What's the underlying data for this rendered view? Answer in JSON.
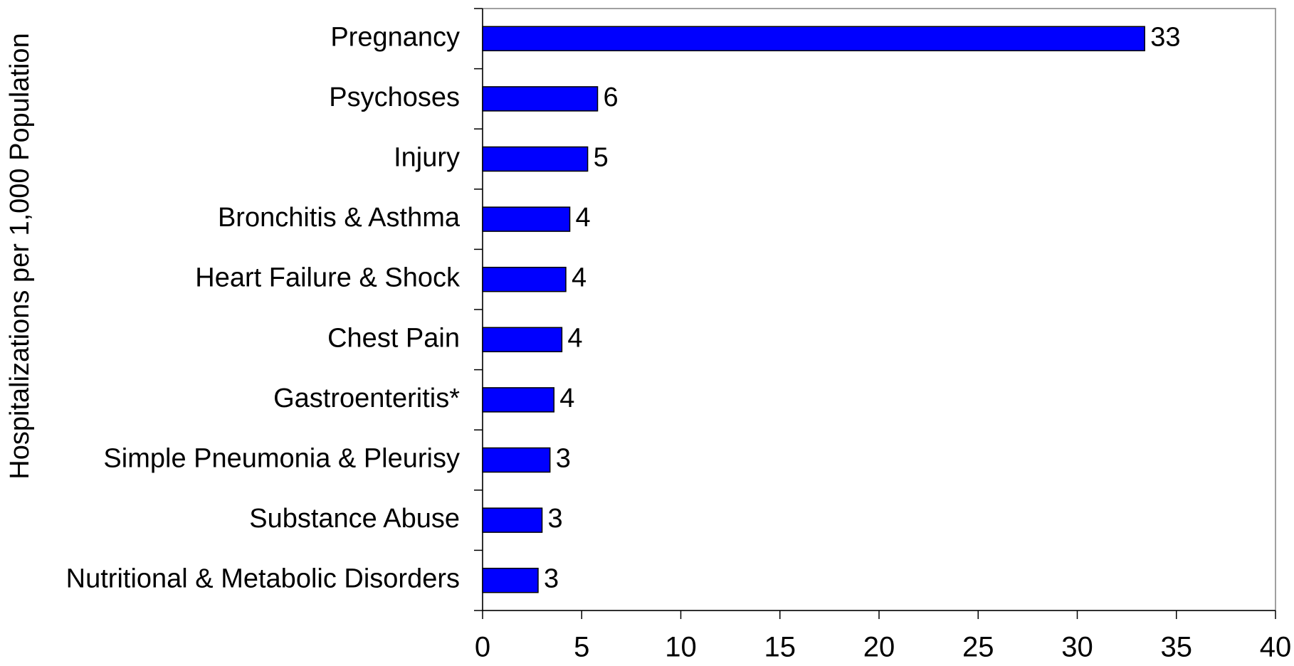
{
  "chart_data": {
    "type": "bar",
    "orientation": "horizontal",
    "y_axis_label": "Hospitalizations per 1,000 Population",
    "categories": [
      "Pregnancy",
      "Psychoses",
      "Injury",
      "Bronchitis & Asthma",
      "Heart Failure & Shock",
      "Chest Pain",
      "Gastroenteritis*",
      "Simple Pneumonia & Pleurisy",
      "Substance Abuse",
      "Nutritional & Metabolic Disorders"
    ],
    "values": [
      33.4,
      5.8,
      5.3,
      4.4,
      4.2,
      4.0,
      3.6,
      3.4,
      3.0,
      2.8
    ],
    "value_labels": [
      "33",
      "6",
      "5",
      "4",
      "4",
      "4",
      "4",
      "3",
      "3",
      "3"
    ],
    "color": "#0000ff",
    "xlim": [
      0,
      40
    ],
    "xticks": [
      0,
      5,
      10,
      15,
      20,
      25,
      30,
      35,
      40
    ]
  }
}
